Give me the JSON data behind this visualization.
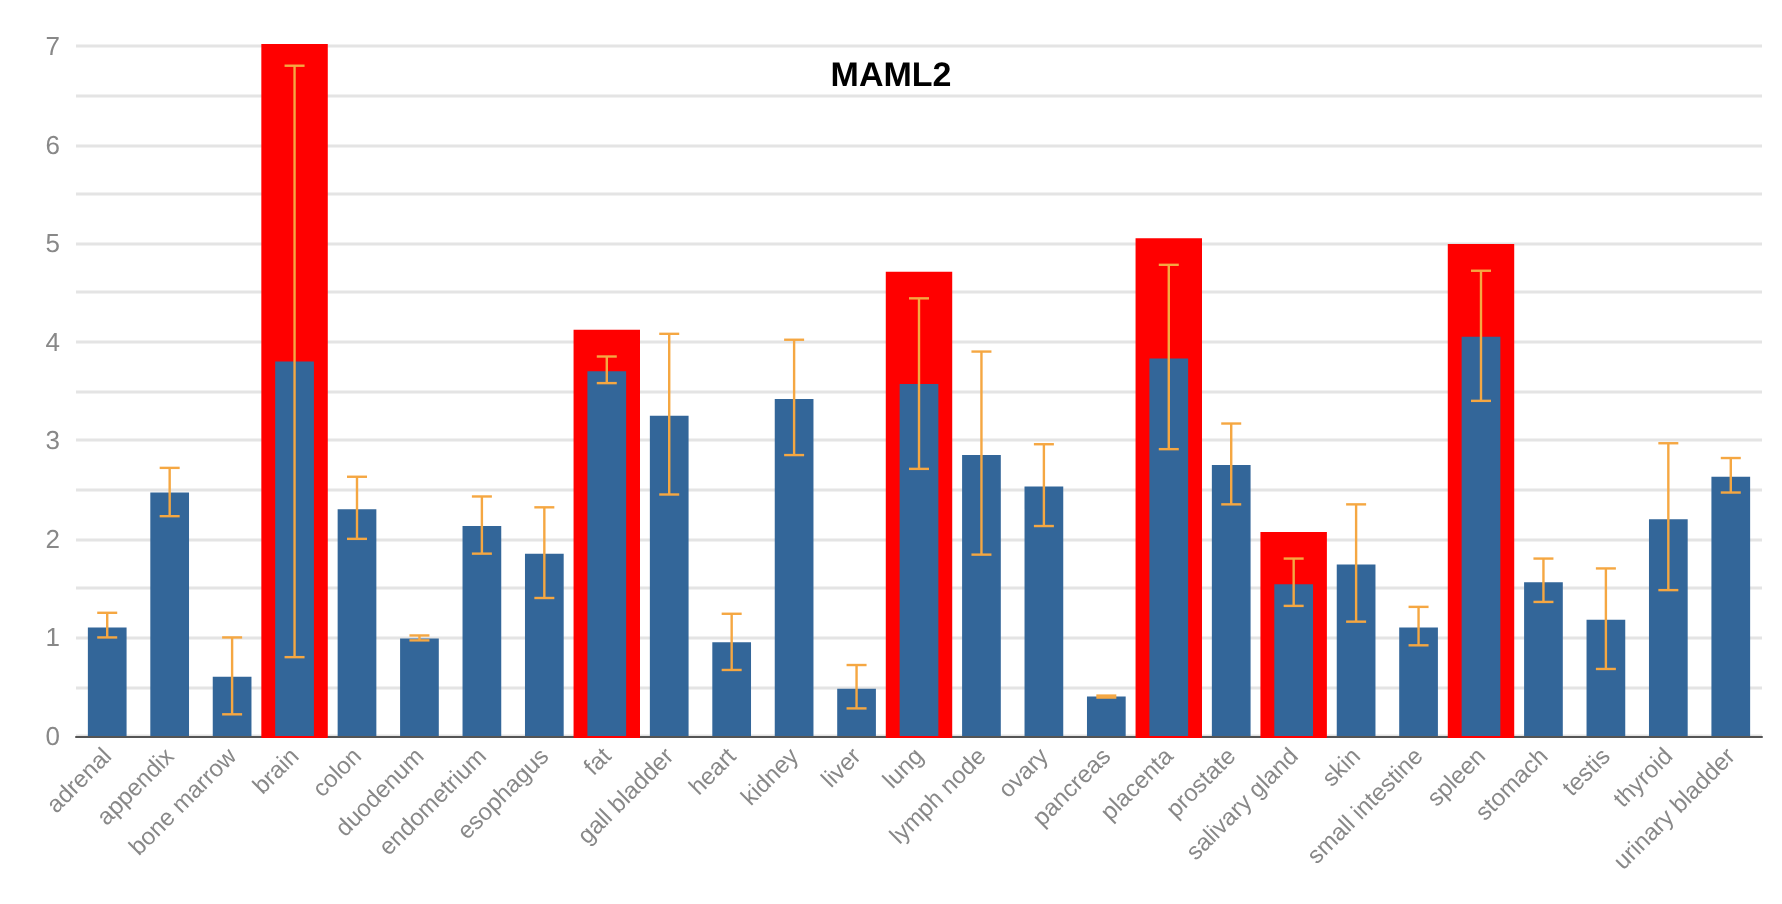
{
  "chart_data": {
    "type": "bar",
    "title": "MAML2",
    "categories": [
      "adrenal",
      "appendix",
      "bone marrow",
      "brain",
      "colon",
      "duodenum",
      "endometrium",
      "esophagus",
      "fat",
      "gall bladder",
      "heart",
      "kidney",
      "liver",
      "lung",
      "lymph node",
      "ovary",
      "pancreas",
      "placenta",
      "prostate",
      "salivary gland",
      "skin",
      "small intestine",
      "spleen",
      "stomach",
      "testis",
      "thyroid",
      "urinary bladder"
    ],
    "series": [
      {
        "color": "#336699",
        "values": [
          1.1,
          2.47,
          0.6,
          3.8,
          2.3,
          0.99,
          2.13,
          1.85,
          3.7,
          3.25,
          0.95,
          3.42,
          0.48,
          3.57,
          2.85,
          2.53,
          0.4,
          3.83,
          2.75,
          1.54,
          1.74,
          1.1,
          4.05,
          1.56,
          1.18,
          2.2,
          2.63
        ],
        "errors": [
          [
            1.0,
            1.25
          ],
          [
            2.23,
            2.72
          ],
          [
            0.22,
            1.0
          ],
          [
            0.8,
            6.8
          ],
          [
            2.0,
            2.63
          ],
          [
            0.97,
            1.02
          ],
          [
            1.85,
            2.43
          ],
          [
            1.4,
            2.32
          ],
          [
            3.58,
            3.85
          ],
          [
            2.45,
            4.08
          ],
          [
            0.67,
            1.24
          ],
          [
            2.85,
            4.02
          ],
          [
            0.28,
            0.72
          ],
          [
            2.71,
            4.44
          ],
          [
            1.84,
            3.9
          ],
          [
            2.13,
            2.96
          ],
          [
            0.39,
            0.41
          ],
          [
            2.91,
            4.78
          ],
          [
            2.35,
            3.17
          ],
          [
            1.32,
            1.8
          ],
          [
            1.16,
            2.35
          ],
          [
            0.92,
            1.31
          ],
          [
            3.4,
            4.72
          ],
          [
            1.36,
            1.8
          ],
          [
            0.68,
            1.7
          ],
          [
            1.48,
            2.97
          ],
          [
            2.47,
            2.82
          ]
        ]
      }
    ],
    "ylim": [
      0,
      7
    ],
    "yticks": [
      0,
      {
        "value": 0.5,
        "label": null
      },
      1,
      {
        "value": 1.5,
        "label": null
      },
      2,
      {
        "value": 2.5,
        "label": null
      },
      3,
      {
        "value": 3.5,
        "label": null
      },
      4,
      {
        "value": 4.5,
        "label": null
      },
      5,
      {
        "value": 5.5,
        "label": null
      },
      6,
      {
        "value": 6.5,
        "label": null
      },
      7
    ],
    "grid": "y",
    "bands": [
      {
        "axis": "x",
        "from": "brain",
        "to": "brain",
        "color": "#ff0000"
      },
      {
        "axis": "x",
        "from": "fat",
        "to": "fat",
        "color": "#ff0000"
      },
      {
        "axis": "x",
        "from": "lung",
        "to": "lung",
        "color": "#ff0000"
      },
      {
        "axis": "x",
        "from": "placenta",
        "to": "placenta",
        "color": "#ff0000"
      },
      {
        "axis": "x",
        "from": "salivary gland",
        "to": "salivary gland",
        "color": "#ff0000"
      },
      {
        "axis": "x",
        "from": "spleen",
        "to": "spleen",
        "color": "#ff0000"
      }
    ]
  }
}
